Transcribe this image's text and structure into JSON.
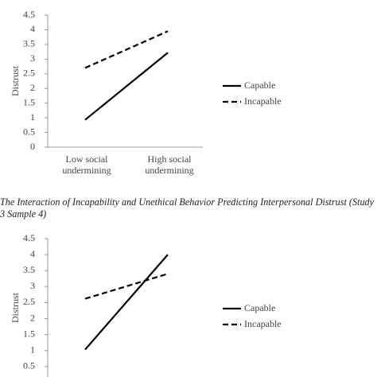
{
  "chart_data": [
    {
      "type": "line",
      "y_label": "Distrust",
      "categories": [
        "Low social undermining",
        "High social undermining"
      ],
      "series": [
        {
          "name": "Capable",
          "color": "#000000",
          "line_style": "solid",
          "values": [
            0.93,
            3.22
          ]
        },
        {
          "name": "Incapable",
          "color": "#000000",
          "line_style": "dashed",
          "values": [
            2.7,
            3.95
          ]
        }
      ],
      "ylim": [
        0,
        4.5
      ],
      "yticks": [
        0,
        0.5,
        1,
        1.5,
        2,
        2.5,
        3,
        3.5,
        4,
        4.5
      ],
      "grid": false,
      "legend": "right"
    },
    {
      "type": "line",
      "y_label": "Distrust",
      "series": [
        {
          "name": "Capable",
          "color": "#000000",
          "line_style": "solid",
          "values": [
            1.03,
            4.0
          ]
        },
        {
          "name": "Incapable",
          "color": "#000000",
          "line_style": "dashed",
          "values": [
            2.62,
            3.4
          ]
        }
      ],
      "ylim": [
        0,
        4.5
      ],
      "yticks": [
        0.5,
        1,
        1.5,
        2,
        2.5,
        3,
        3.5,
        4,
        4.5
      ],
      "grid": false,
      "legend": "right"
    }
  ],
  "caption": "The Interaction of Incapability and Unethical Behavior Predicting Interpersonal Distrust (Study 3 Sample 4)"
}
